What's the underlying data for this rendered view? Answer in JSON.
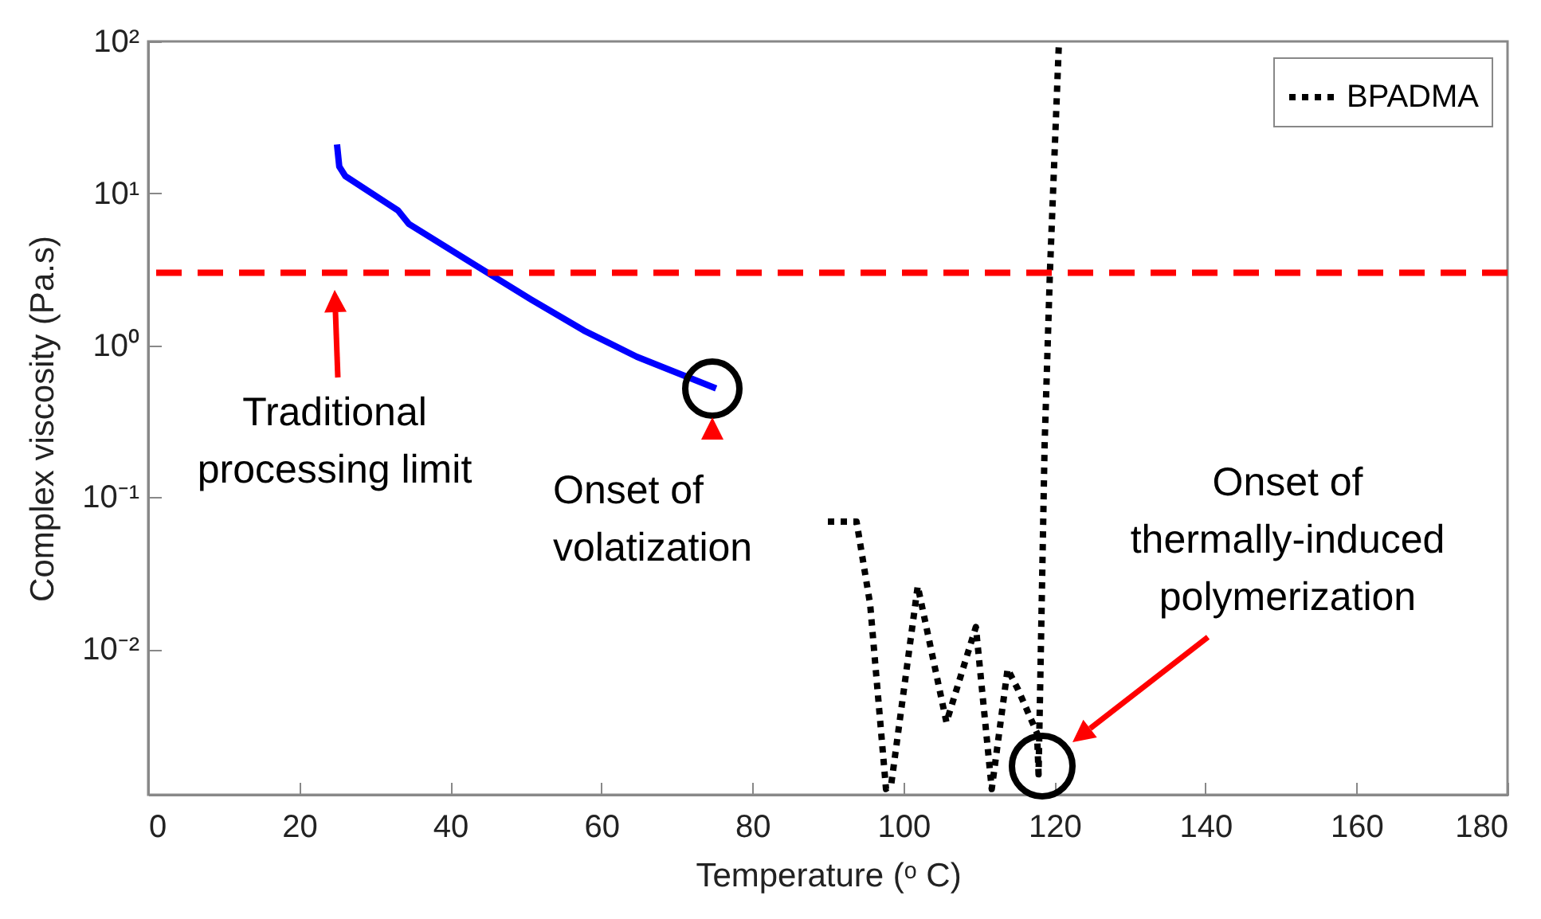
{
  "chart_data": {
    "type": "line",
    "xlabel": "Temperature (ᵒ C)",
    "ylabel": "Complex viscosity (Pa.s)",
    "xlim": [
      0,
      180
    ],
    "xticks": [
      0,
      20,
      40,
      60,
      80,
      100,
      120,
      140,
      160,
      180
    ],
    "ylim": [
      0.0011,
      100
    ],
    "yticks": [
      {
        "value": 0.01,
        "label": "10⁻²"
      },
      {
        "value": 0.1,
        "label": "10⁻¹"
      },
      {
        "value": 1,
        "label": "10⁰"
      },
      {
        "value": 10,
        "label": "10¹"
      },
      {
        "value": 100,
        "label": "10²"
      }
    ],
    "log": "y",
    "legend": "top right",
    "series": [
      {
        "name": "BPADMA",
        "color": "#000000",
        "line_style": "dotted",
        "x": [
          90.0,
          93.8,
          95.6,
          97.7,
          98.4,
          101.9,
          105.7,
          109.6,
          111.7,
          113.8,
          115.2,
          117.7,
          117.9,
          118.7,
          119.4,
          120.6
        ],
        "values": [
          0.069,
          0.069,
          0.0197,
          0.0012,
          0.0013,
          0.026,
          0.0033,
          0.014,
          0.0012,
          0.0074,
          0.0054,
          0.0028,
          0.0015,
          0.22,
          3,
          100
        ]
      },
      {
        "color": "#0000ff",
        "line_style": "solid",
        "x": [
          25,
          25.3,
          26.1,
          33.1,
          34.5,
          43.6,
          50.7,
          57.7,
          64.7,
          75.2
        ],
        "values": [
          21,
          15,
          13,
          7.7,
          6.3,
          3.3,
          2.0,
          1.25,
          0.84,
          0.52
        ]
      }
    ],
    "ref_lines": [
      {
        "axis": "y",
        "value": 3,
        "color": "#ff0000",
        "line_style": "dashed"
      }
    ],
    "annotations": [
      "Traditional\nprocessing limit",
      "Onset of\nvolatization",
      "Onset of\nthermally-induced\npolymerization"
    ]
  }
}
